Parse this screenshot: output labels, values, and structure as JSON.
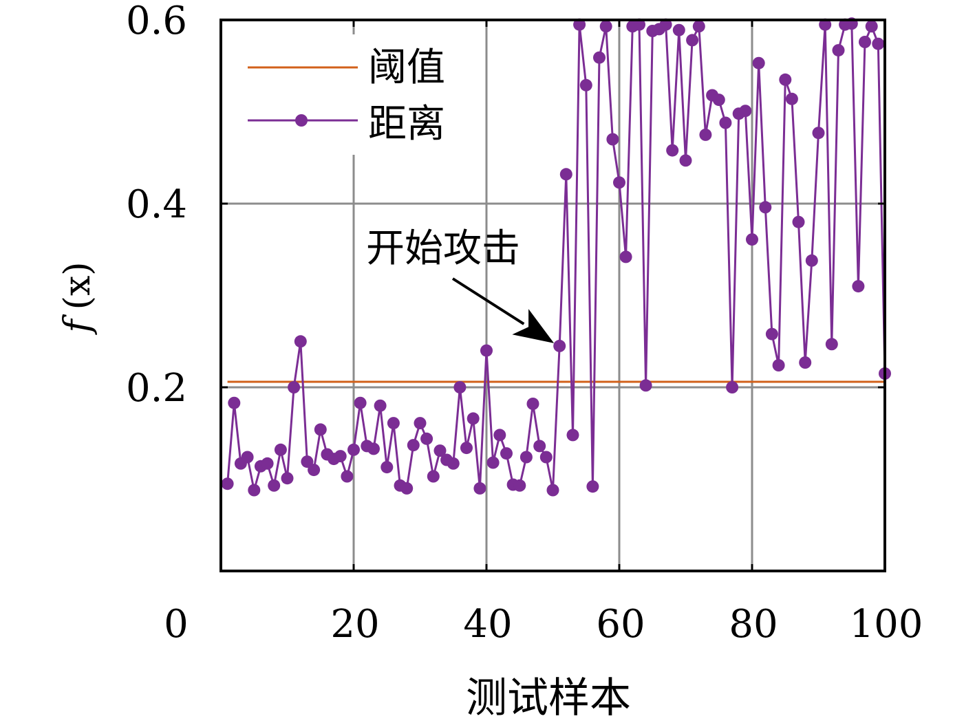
{
  "colors": {
    "threshold": "#d2601a",
    "distance": "#7b2d94",
    "grid": "#8c8c8c",
    "axis": "#000000"
  },
  "annotation": {
    "text": "开始攻击",
    "target_x": 51,
    "target_y": 0.245
  },
  "chart_data": {
    "type": "line",
    "xlabel": "测试样本",
    "ylabel": "f (x)",
    "xlim": [
      0,
      100
    ],
    "ylim": [
      0,
      0.6
    ],
    "x_ticks": [
      0,
      20,
      40,
      60,
      80,
      100
    ],
    "x_tick_labels": [
      "0",
      "20",
      "40",
      "60",
      "80",
      "100"
    ],
    "y_ticks": [
      0.2,
      0.4,
      0.6
    ],
    "y_tick_labels": [
      "0.2",
      "0.4",
      "0.6"
    ],
    "grid": true,
    "legend_position": "top-left",
    "series": [
      {
        "name": "阈值",
        "marker": "none",
        "x": [
          1,
          100
        ],
        "values": [
          0.206,
          0.206
        ]
      },
      {
        "name": "距离",
        "marker": "circle",
        "x": [
          1,
          2,
          3,
          4,
          5,
          6,
          7,
          8,
          9,
          10,
          11,
          12,
          13,
          14,
          15,
          16,
          17,
          18,
          19,
          20,
          21,
          22,
          23,
          24,
          25,
          26,
          27,
          28,
          29,
          30,
          31,
          32,
          33,
          34,
          35,
          36,
          37,
          38,
          39,
          40,
          41,
          42,
          43,
          44,
          45,
          46,
          47,
          48,
          49,
          50,
          51,
          52,
          53,
          54,
          55,
          56,
          57,
          58,
          59,
          60,
          61,
          62,
          63,
          64,
          65,
          66,
          67,
          68,
          69,
          70,
          71,
          72,
          73,
          74,
          75,
          76,
          77,
          78,
          79,
          80,
          81,
          82,
          83,
          84,
          85,
          86,
          87,
          88,
          89,
          90,
          91,
          92,
          93,
          94,
          95,
          96,
          97,
          98,
          99,
          100
        ],
        "values": [
          0.095,
          0.183,
          0.117,
          0.124,
          0.088,
          0.114,
          0.117,
          0.093,
          0.132,
          0.101,
          0.2,
          0.25,
          0.119,
          0.11,
          0.154,
          0.127,
          0.122,
          0.125,
          0.103,
          0.132,
          0.183,
          0.136,
          0.133,
          0.18,
          0.113,
          0.161,
          0.093,
          0.09,
          0.137,
          0.161,
          0.144,
          0.103,
          0.131,
          0.121,
          0.117,
          0.2,
          0.134,
          0.166,
          0.09,
          0.24,
          0.118,
          0.148,
          0.128,
          0.094,
          0.093,
          0.124,
          0.182,
          0.136,
          0.124,
          0.088,
          0.245,
          0.432,
          0.148,
          0.595,
          0.529,
          0.092,
          0.559,
          0.593,
          0.47,
          0.423,
          0.342,
          0.593,
          0.595,
          0.202,
          0.588,
          0.59,
          0.595,
          0.458,
          0.589,
          0.447,
          0.578,
          0.593,
          0.475,
          0.518,
          0.513,
          0.488,
          0.2,
          0.498,
          0.501,
          0.361,
          0.553,
          0.396,
          0.258,
          0.224,
          0.535,
          0.514,
          0.38,
          0.227,
          0.338,
          0.477,
          0.595,
          0.247,
          0.567,
          0.595,
          0.596,
          0.31,
          0.576,
          0.593,
          0.574,
          0.215
        ]
      }
    ]
  }
}
